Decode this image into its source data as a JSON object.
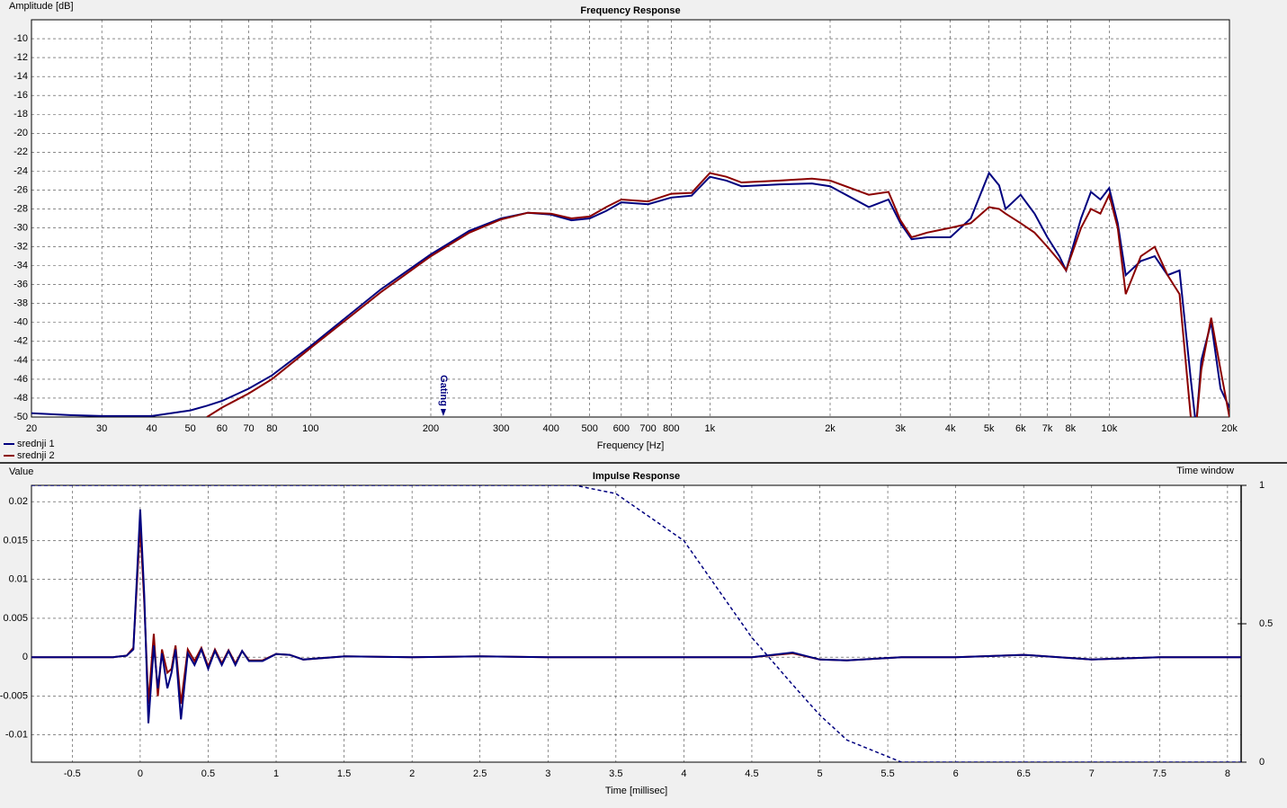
{
  "chart_data": [
    {
      "type": "line",
      "title": "Frequency Response",
      "ylabel": "Amplitude [dB]",
      "xlabel": "Frequency [Hz]",
      "xscale": "log",
      "grid": true,
      "legend": "bottom-left",
      "xlim": [
        20,
        20000
      ],
      "ylim": [
        -50,
        -8
      ],
      "xticks": [
        20,
        30,
        40,
        50,
        60,
        70,
        80,
        100,
        200,
        300,
        400,
        500,
        600,
        700,
        800,
        {
          "value": 1000,
          "label": "1k"
        },
        {
          "value": 2000,
          "label": "2k"
        },
        {
          "value": 3000,
          "label": "3k"
        },
        {
          "value": 4000,
          "label": "4k"
        },
        {
          "value": 5000,
          "label": "5k"
        },
        {
          "value": 6000,
          "label": "6k"
        },
        {
          "value": 7000,
          "label": "7k"
        },
        {
          "value": 8000,
          "label": "8k"
        },
        {
          "value": 10000,
          "label": "10k"
        },
        {
          "value": 20000,
          "label": "20k"
        }
      ],
      "yticks": [
        -50,
        -48,
        -46,
        -44,
        -42,
        -40,
        -38,
        -36,
        -34,
        -32,
        -30,
        -28,
        -26,
        -24,
        -22,
        -20,
        -18,
        -16,
        -14,
        -12,
        -10
      ],
      "annotations": [
        {
          "text": "Gating",
          "x": 215
        }
      ],
      "x": [
        20,
        25,
        30,
        40,
        50,
        55,
        60,
        70,
        80,
        100,
        150,
        200,
        250,
        300,
        350,
        400,
        450,
        500,
        550,
        600,
        700,
        800,
        900,
        1000,
        1100,
        1200,
        1500,
        1800,
        2000,
        2500,
        2800,
        3000,
        3200,
        3500,
        4000,
        4500,
        5000,
        5300,
        5500,
        6000,
        6500,
        7000,
        7500,
        7800,
        8500,
        9000,
        9500,
        10000,
        10500,
        11000,
        12000,
        13000,
        14000,
        15000,
        16000,
        16500,
        17000,
        18000,
        19000,
        20000
      ],
      "series": [
        {
          "name": "srednji 1",
          "color": "#00007f",
          "values": [
            -49.6,
            -49.8,
            -49.9,
            -49.9,
            -49.3,
            -48.8,
            -48.3,
            -47,
            -45.6,
            -42.5,
            -36.5,
            -32.8,
            -30.3,
            -29,
            -28.4,
            -28.6,
            -29.2,
            -29,
            -28.2,
            -27.3,
            -27.5,
            -26.8,
            -26.6,
            -24.6,
            -25,
            -25.6,
            -25.4,
            -25.3,
            -25.6,
            -27.8,
            -27,
            -29.5,
            -31.2,
            -31,
            -31,
            -29,
            -24.2,
            -25.5,
            -28,
            -26.5,
            -28.5,
            -31,
            -33,
            -34.5,
            -29,
            -26.2,
            -27,
            -25.8,
            -29.5,
            -35,
            -33.5,
            -33,
            -35,
            -34.5,
            -46,
            -51,
            -44,
            -40,
            -47,
            -49
          ]
        },
        {
          "name": "srednji 2",
          "color": "#8b0000",
          "values": [
            null,
            null,
            null,
            null,
            null,
            -50,
            -49,
            -47.5,
            -46,
            -42.7,
            -36.8,
            -33,
            -30.5,
            -29.1,
            -28.4,
            -28.5,
            -29,
            -28.8,
            -27.8,
            -27,
            -27.2,
            -26.4,
            -26.3,
            -24.2,
            -24.6,
            -25.2,
            -25,
            -24.8,
            -25,
            -26.5,
            -26.2,
            -29.2,
            -31,
            -30.5,
            -30,
            -29.5,
            -27.8,
            -28,
            -28.5,
            -29.5,
            -30.5,
            -32,
            -33.5,
            -34.5,
            -30,
            -28,
            -28.5,
            -26.5,
            -30,
            -37,
            -33,
            -32,
            -35,
            -37,
            -50,
            -51,
            -45,
            -39.5,
            -45,
            -50
          ]
        }
      ]
    },
    {
      "type": "line",
      "title": "Impulse Response",
      "ylabel": "Value",
      "xlabel": "Time [millisec]",
      "y2label": "Time window",
      "grid": true,
      "xlim": [
        -0.8,
        8.1
      ],
      "ylim": [
        -0.0135,
        0.0221
      ],
      "y2lim": [
        0,
        1
      ],
      "xticks": [
        -0.5,
        0,
        0.5,
        1,
        1.5,
        2,
        2.5,
        3,
        3.5,
        4,
        4.5,
        5,
        5.5,
        6,
        6.5,
        7,
        7.5,
        8
      ],
      "yticks": [
        -0.01,
        -0.005,
        0,
        0.005,
        0.01,
        0.015,
        0.02
      ],
      "y2ticks": [
        0,
        0.5,
        1
      ],
      "x": [
        -0.8,
        -0.3,
        -0.2,
        -0.1,
        -0.05,
        0,
        0.03,
        0.06,
        0.1,
        0.13,
        0.16,
        0.2,
        0.23,
        0.26,
        0.3,
        0.35,
        0.4,
        0.45,
        0.5,
        0.55,
        0.6,
        0.65,
        0.7,
        0.75,
        0.8,
        0.9,
        1.0,
        1.1,
        1.2,
        1.5,
        2,
        2.5,
        3,
        3.2,
        3.5,
        4,
        4.5,
        4.8,
        5,
        5.2,
        5.6,
        6,
        6.5,
        7,
        7.5,
        8.1
      ],
      "series": [
        {
          "color": "#8b0000",
          "values": [
            0,
            0,
            0,
            0.0002,
            0.0012,
            0.017,
            0.007,
            -0.006,
            0.003,
            -0.005,
            0.001,
            -0.002,
            -0.0015,
            0.0015,
            -0.006,
            0.001,
            -0.0005,
            0.0012,
            -0.0012,
            0.001,
            -0.0008,
            0.0009,
            -0.0008,
            0.0008,
            -0.0004,
            -0.0004,
            0.0004,
            0.0003,
            -0.0003,
            0.0001,
            0,
            0.0001,
            0,
            0,
            0,
            0,
            0,
            0.0005,
            -0.0003,
            -0.0004,
            0,
            0,
            0.0003,
            -0.0003,
            0,
            0
          ]
        },
        {
          "color": "#00007f",
          "values": [
            0,
            0,
            0,
            0.0002,
            0.001,
            0.019,
            0.008,
            -0.0085,
            0.0015,
            -0.004,
            0.0005,
            -0.004,
            -0.002,
            0.001,
            -0.008,
            0.0005,
            -0.001,
            0.001,
            -0.0015,
            0.0008,
            -0.001,
            0.0008,
            -0.001,
            0.0008,
            -0.0005,
            -0.0005,
            0.0004,
            0.0003,
            -0.0003,
            0.0001,
            0,
            0.0001,
            0,
            0,
            0,
            0,
            0,
            0.0006,
            -0.0003,
            -0.0004,
            0,
            0,
            0.0003,
            -0.0003,
            0,
            0
          ]
        },
        {
          "color": "#00007f",
          "axis": "y2",
          "dashed": true,
          "values": [
            1,
            1,
            1,
            1,
            1,
            1,
            1,
            1,
            1,
            1,
            1,
            1,
            1,
            1,
            1,
            1,
            1,
            1,
            1,
            1,
            1,
            1,
            1,
            1,
            1,
            1,
            1,
            1,
            1,
            1,
            1,
            1,
            1,
            1,
            0.97,
            0.8,
            0.45,
            0.28,
            0.17,
            0.08,
            0,
            0,
            0,
            0,
            0,
            0
          ]
        }
      ]
    }
  ]
}
